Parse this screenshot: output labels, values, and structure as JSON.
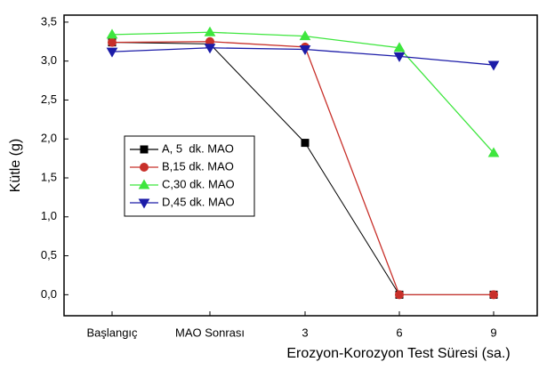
{
  "chart_data": {
    "type": "line",
    "categories": [
      "Başlangıç",
      "MAO Sonrası",
      "3",
      "6",
      "9"
    ],
    "xlabel": "Erozyon-Korozyon Test Süresi (sa.)",
    "ylabel": "Kütle (g)",
    "ylim": [
      -0.27,
      3.59
    ],
    "yticks": [
      {
        "value": 0,
        "label": "0,0"
      },
      {
        "value": 0.5,
        "label": "0,5"
      },
      {
        "value": 1,
        "label": "1,0"
      },
      {
        "value": 1.5,
        "label": "1,5"
      },
      {
        "value": 2,
        "label": "2,0"
      },
      {
        "value": 2.5,
        "label": "2,5"
      },
      {
        "value": 3,
        "label": "3,0"
      },
      {
        "value": 3.5,
        "label": "3,5"
      }
    ],
    "series": [
      {
        "name": "A, 5  dk. MAO",
        "color": "#000000",
        "marker": "square",
        "values": [
          3.24,
          3.22,
          1.95,
          0,
          0
        ]
      },
      {
        "name": "B,15 dk. MAO",
        "color": "#c8302a",
        "marker": "circle",
        "values": [
          3.24,
          3.25,
          3.18,
          0,
          0
        ]
      },
      {
        "name": "C,30 dk. MAO",
        "color": "#3ee63e",
        "marker": "triangle-up",
        "values": [
          3.34,
          3.37,
          3.32,
          3.17,
          1.82
        ]
      },
      {
        "name": "D,45 dk. MAO",
        "color": "#1c1ca8",
        "marker": "triangle-down",
        "values": [
          3.12,
          3.17,
          3.15,
          3.06,
          2.95
        ]
      }
    ]
  }
}
